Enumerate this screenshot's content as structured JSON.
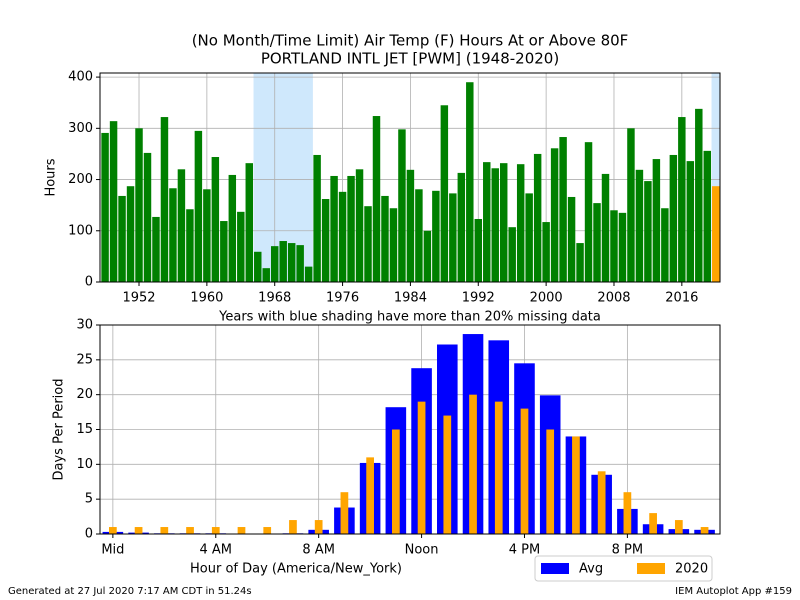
{
  "chart_data": [
    {
      "type": "bar",
      "title": [
        "(No Month/Time Limit) Air Temp (F) Hours At or Above 80F",
        "PORTLAND INTL JET [PWM] (1948-2020)"
      ],
      "y_label": "Hours",
      "annotation": "Years with blue shading have more than 20% missing data",
      "x": [
        1948,
        1949,
        1950,
        1951,
        1952,
        1953,
        1954,
        1955,
        1956,
        1957,
        1958,
        1959,
        1960,
        1961,
        1962,
        1963,
        1964,
        1965,
        1966,
        1967,
        1968,
        1969,
        1970,
        1971,
        1972,
        1973,
        1974,
        1975,
        1976,
        1977,
        1978,
        1979,
        1980,
        1981,
        1982,
        1983,
        1984,
        1985,
        1986,
        1987,
        1988,
        1989,
        1990,
        1991,
        1992,
        1993,
        1994,
        1995,
        1996,
        1997,
        1998,
        1999,
        2000,
        2001,
        2002,
        2003,
        2004,
        2005,
        2006,
        2007,
        2008,
        2009,
        2010,
        2011,
        2012,
        2013,
        2014,
        2015,
        2016,
        2017,
        2018,
        2019,
        2020
      ],
      "series": [
        {
          "color": "#008000",
          "values": [
            291,
            314,
            168,
            187,
            300,
            252,
            127,
            322,
            183,
            220,
            142,
            295,
            181,
            244,
            119,
            209,
            137,
            232,
            59,
            27,
            70,
            80,
            76,
            72,
            30,
            248,
            162,
            207,
            176,
            207,
            220,
            148,
            324,
            168,
            144,
            298,
            219,
            181,
            100,
            178,
            345,
            173,
            213,
            390,
            123,
            234,
            222,
            232,
            107,
            230,
            173,
            250,
            117,
            261,
            283,
            166,
            76,
            273,
            154,
            211,
            140,
            135,
            300,
            219,
            197,
            240,
            144,
            248,
            322,
            236,
            338,
            256,
            null
          ]
        },
        {
          "color": "#ffa500",
          "values": [
            null,
            null,
            null,
            null,
            null,
            null,
            null,
            null,
            null,
            null,
            null,
            null,
            null,
            null,
            null,
            null,
            null,
            null,
            null,
            null,
            null,
            null,
            null,
            null,
            null,
            null,
            null,
            null,
            null,
            null,
            null,
            null,
            null,
            null,
            null,
            null,
            null,
            null,
            null,
            null,
            null,
            null,
            null,
            null,
            null,
            null,
            null,
            null,
            null,
            null,
            null,
            null,
            null,
            null,
            null,
            null,
            null,
            null,
            null,
            null,
            null,
            null,
            null,
            null,
            null,
            null,
            null,
            null,
            null,
            null,
            null,
            null,
            187
          ]
        }
      ],
      "shaded_ranges": [
        [
          1965.5,
          1972.5
        ],
        [
          2019.5,
          2020.5
        ]
      ],
      "shade_color": "#cfe8fc",
      "xlim": [
        1947.4,
        2020.5
      ],
      "xticks": [
        1952,
        1960,
        1968,
        1976,
        1984,
        1992,
        2000,
        2008,
        2016
      ],
      "ylim": [
        0,
        408
      ],
      "yticks": [
        0,
        100,
        200,
        300,
        400
      ],
      "grid": true
    },
    {
      "type": "bar",
      "x_label": "Hour of Day (America/New_York)",
      "y_label": "Days Per Period",
      "x": [
        0,
        1,
        2,
        3,
        4,
        5,
        6,
        7,
        8,
        9,
        10,
        11,
        12,
        13,
        14,
        15,
        16,
        17,
        18,
        19,
        20,
        21,
        22,
        23
      ],
      "series": [
        {
          "name": "Avg",
          "color": "#0000ff",
          "values": [
            0.3,
            0.2,
            0.1,
            0.1,
            0.1,
            0,
            0,
            0.1,
            0.6,
            3.8,
            10.2,
            18.2,
            23.8,
            27.2,
            28.7,
            27.8,
            24.5,
            19.9,
            14.0,
            8.5,
            3.6,
            1.4,
            0.7,
            0.6
          ]
        },
        {
          "name": "2020",
          "color": "#ffa500",
          "values": [
            1,
            1,
            1,
            1,
            1,
            1,
            1,
            2,
            2,
            6,
            11,
            15,
            19,
            17,
            20,
            19,
            18,
            15,
            14,
            9,
            6,
            3,
            2,
            1
          ]
        }
      ],
      "xlim": [
        -0.5,
        23.6
      ],
      "xticks": [
        {
          "value": 0,
          "label": "Mid"
        },
        {
          "value": 4,
          "label": "4 AM"
        },
        {
          "value": 8,
          "label": "8 AM"
        },
        {
          "value": 12,
          "label": "Noon"
        },
        {
          "value": 16,
          "label": "4 PM"
        },
        {
          "value": 20,
          "label": "8 PM"
        }
      ],
      "ylim": [
        0,
        30
      ],
      "yticks": [
        0,
        5,
        10,
        15,
        20,
        25,
        30
      ],
      "grid": true,
      "legend": "lower right"
    }
  ],
  "footer": {
    "left": "Generated at 27 Jul 2020 7:17 AM CDT in 51.24s",
    "right": "IEM Autoplot App #159"
  }
}
